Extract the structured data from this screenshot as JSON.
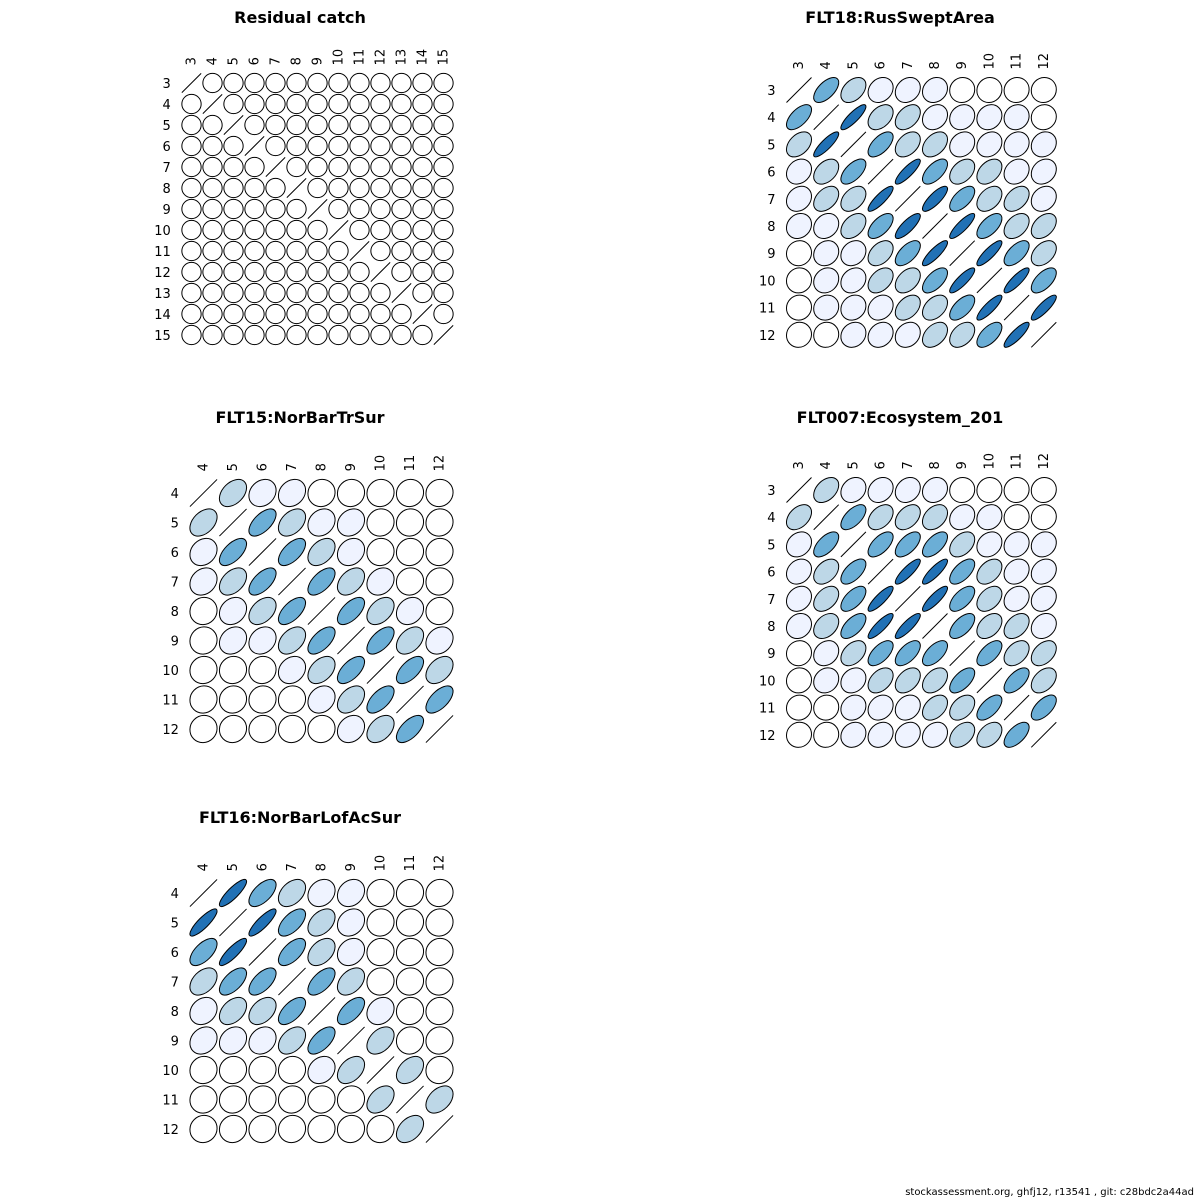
{
  "palette": {
    "white": "#ffffff",
    "lightest": "#eff3ff",
    "light": "#bdd7e7",
    "mid": "#6baed6",
    "dark": "#2171b5"
  },
  "chart_data": [
    {
      "type": "correlation_ellipse_matrix",
      "title": "Residual catch",
      "labels": [
        "3",
        "4",
        "5",
        "6",
        "7",
        "8",
        "9",
        "10",
        "11",
        "12",
        "13",
        "14",
        "15"
      ],
      "correlations": [
        [
          1,
          0,
          0,
          0,
          0,
          0,
          0,
          0,
          0,
          0,
          0,
          0,
          0
        ],
        [
          0,
          1,
          0,
          0,
          0,
          0,
          0,
          0,
          0,
          0,
          0,
          0,
          0
        ],
        [
          0,
          0,
          1,
          0,
          0,
          0,
          0,
          0,
          0,
          0,
          0,
          0,
          0
        ],
        [
          0,
          0,
          0,
          1,
          0,
          0,
          0,
          0,
          0,
          0,
          0,
          0,
          0
        ],
        [
          0,
          0,
          0,
          0,
          1,
          0,
          0,
          0,
          0,
          0,
          0,
          0,
          0
        ],
        [
          0,
          0,
          0,
          0,
          0,
          1,
          0,
          0,
          0,
          0,
          0,
          0,
          0
        ],
        [
          0,
          0,
          0,
          0,
          0,
          0,
          1,
          0,
          0,
          0,
          0,
          0,
          0
        ],
        [
          0,
          0,
          0,
          0,
          0,
          0,
          0,
          1,
          0,
          0,
          0,
          0,
          0
        ],
        [
          0,
          0,
          0,
          0,
          0,
          0,
          0,
          0,
          1,
          0,
          0,
          0,
          0
        ],
        [
          0,
          0,
          0,
          0,
          0,
          0,
          0,
          0,
          0,
          1,
          0,
          0,
          0
        ],
        [
          0,
          0,
          0,
          0,
          0,
          0,
          0,
          0,
          0,
          0,
          1,
          0,
          0
        ],
        [
          0,
          0,
          0,
          0,
          0,
          0,
          0,
          0,
          0,
          0,
          0,
          1,
          0
        ],
        [
          0,
          0,
          0,
          0,
          0,
          0,
          0,
          0,
          0,
          0,
          0,
          0,
          1
        ]
      ]
    },
    {
      "type": "correlation_ellipse_matrix",
      "title": "FLT18:RusSweptArea",
      "labels": [
        "3",
        "4",
        "5",
        "6",
        "7",
        "8",
        "9",
        "10",
        "11",
        "12"
      ],
      "correlations": [
        [
          1,
          0.6,
          0.4,
          0.2,
          0.2,
          0.15,
          0.05,
          0.05,
          0.05,
          0.05
        ],
        [
          0.6,
          1,
          0.85,
          0.4,
          0.4,
          0.2,
          0.15,
          0.15,
          0.1,
          0.05
        ],
        [
          0.4,
          0.85,
          1,
          0.6,
          0.4,
          0.4,
          0.2,
          0.2,
          0.15,
          0.15
        ],
        [
          0.2,
          0.4,
          0.6,
          1,
          0.85,
          0.6,
          0.4,
          0.4,
          0.2,
          0.2
        ],
        [
          0.2,
          0.4,
          0.4,
          0.85,
          1,
          0.8,
          0.6,
          0.4,
          0.4,
          0.2
        ],
        [
          0.15,
          0.2,
          0.4,
          0.6,
          0.8,
          1,
          0.85,
          0.6,
          0.4,
          0.4
        ],
        [
          0.05,
          0.15,
          0.2,
          0.4,
          0.6,
          0.85,
          1,
          0.85,
          0.6,
          0.4
        ],
        [
          0.05,
          0.15,
          0.2,
          0.4,
          0.4,
          0.6,
          0.85,
          1,
          0.85,
          0.6
        ],
        [
          0.05,
          0.1,
          0.15,
          0.2,
          0.4,
          0.4,
          0.6,
          0.85,
          1,
          0.85
        ],
        [
          0.05,
          0.05,
          0.15,
          0.2,
          0.2,
          0.4,
          0.4,
          0.6,
          0.85,
          1
        ]
      ]
    },
    {
      "type": "correlation_ellipse_matrix",
      "title": "FLT15:NorBarTrSur",
      "labels": [
        "4",
        "5",
        "6",
        "7",
        "8",
        "9",
        "10",
        "11",
        "12"
      ],
      "correlations": [
        [
          1,
          0.4,
          0.2,
          0.2,
          0.05,
          0.05,
          0.05,
          0.05,
          0.05
        ],
        [
          0.4,
          1,
          0.6,
          0.4,
          0.2,
          0.2,
          0.05,
          0.05,
          0.05
        ],
        [
          0.2,
          0.6,
          1,
          0.6,
          0.4,
          0.2,
          0.05,
          0.05,
          0.05
        ],
        [
          0.2,
          0.4,
          0.6,
          1,
          0.6,
          0.4,
          0.2,
          0.05,
          0.05
        ],
        [
          0.05,
          0.2,
          0.4,
          0.6,
          1,
          0.6,
          0.4,
          0.2,
          0.05
        ],
        [
          0.05,
          0.2,
          0.2,
          0.4,
          0.6,
          1,
          0.6,
          0.4,
          0.2
        ],
        [
          0.05,
          0.05,
          0.05,
          0.2,
          0.4,
          0.6,
          1,
          0.6,
          0.4
        ],
        [
          0.05,
          0.05,
          0.05,
          0.05,
          0.2,
          0.4,
          0.6,
          1,
          0.6
        ],
        [
          0.05,
          0.05,
          0.05,
          0.05,
          0.05,
          0.2,
          0.4,
          0.6,
          1
        ]
      ]
    },
    {
      "type": "correlation_ellipse_matrix",
      "title": "FLT007:Ecosystem_201",
      "labels": [
        "3",
        "4",
        "5",
        "6",
        "7",
        "8",
        "9",
        "10",
        "11",
        "12"
      ],
      "correlations": [
        [
          1,
          0.4,
          0.2,
          0.2,
          0.2,
          0.15,
          0.05,
          0.05,
          0.05,
          0.05
        ],
        [
          0.4,
          1,
          0.6,
          0.4,
          0.4,
          0.35,
          0.2,
          0.15,
          0.05,
          0.05
        ],
        [
          0.2,
          0.6,
          1,
          0.6,
          0.6,
          0.6,
          0.4,
          0.2,
          0.15,
          0.15
        ],
        [
          0.2,
          0.4,
          0.6,
          1,
          0.85,
          0.85,
          0.6,
          0.4,
          0.2,
          0.2
        ],
        [
          0.2,
          0.4,
          0.6,
          0.85,
          1,
          0.85,
          0.6,
          0.4,
          0.2,
          0.2
        ],
        [
          0.15,
          0.35,
          0.6,
          0.85,
          0.85,
          1,
          0.6,
          0.4,
          0.4,
          0.2
        ],
        [
          0.05,
          0.2,
          0.4,
          0.6,
          0.6,
          0.6,
          1,
          0.6,
          0.4,
          0.4
        ],
        [
          0.05,
          0.15,
          0.2,
          0.4,
          0.4,
          0.4,
          0.6,
          1,
          0.6,
          0.4
        ],
        [
          0.05,
          0.05,
          0.15,
          0.2,
          0.2,
          0.4,
          0.4,
          0.6,
          1,
          0.6
        ],
        [
          0.05,
          0.05,
          0.15,
          0.2,
          0.2,
          0.2,
          0.4,
          0.4,
          0.6,
          1
        ]
      ]
    },
    {
      "type": "correlation_ellipse_matrix",
      "title": "FLT16:NorBarLofAcSur",
      "labels": [
        "4",
        "5",
        "6",
        "7",
        "8",
        "9",
        "10",
        "11",
        "12"
      ],
      "correlations": [
        [
          1,
          0.85,
          0.6,
          0.4,
          0.2,
          0.2,
          0.05,
          0.05,
          0.05
        ],
        [
          0.85,
          1,
          0.85,
          0.6,
          0.4,
          0.2,
          0.05,
          0.05,
          0.05
        ],
        [
          0.6,
          0.85,
          1,
          0.6,
          0.4,
          0.2,
          0.05,
          0.05,
          0.05
        ],
        [
          0.4,
          0.6,
          0.6,
          1,
          0.6,
          0.4,
          0.05,
          0.05,
          0.05
        ],
        [
          0.2,
          0.4,
          0.4,
          0.6,
          1,
          0.6,
          0.2,
          0.05,
          0.05
        ],
        [
          0.2,
          0.2,
          0.2,
          0.4,
          0.6,
          1,
          0.4,
          0.05,
          0.05
        ],
        [
          0.05,
          0.05,
          0.05,
          0.05,
          0.2,
          0.4,
          1,
          0.4,
          0.05
        ],
        [
          0.05,
          0.05,
          0.05,
          0.05,
          0.05,
          0.05,
          0.4,
          1,
          0.4
        ],
        [
          0.05,
          0.05,
          0.05,
          0.05,
          0.05,
          0.05,
          0.05,
          0.4,
          1
        ]
      ]
    }
  ],
  "footer": {
    "text": "stockassessment.org, ghfj12, r13541 , git: c28bdc2a44ad"
  }
}
